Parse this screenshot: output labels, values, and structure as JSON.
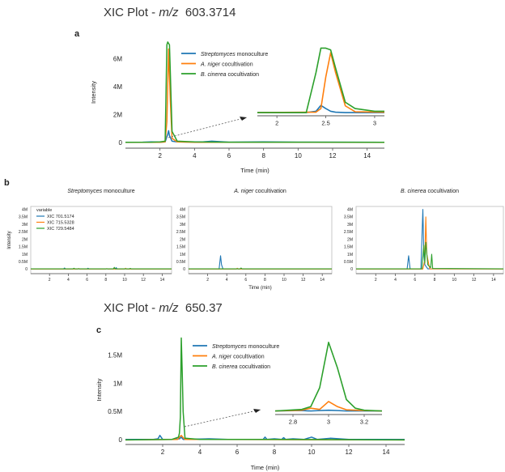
{
  "titles": {
    "top": {
      "prefix": "XIC Plot - ",
      "mz": "m/z",
      "value": "603.3714"
    },
    "bottom": {
      "prefix": "XIC Plot - ",
      "mz": "m/z",
      "value": "650.37"
    }
  },
  "panel_labels": {
    "a": "a",
    "b": "b",
    "c": "c"
  },
  "colors": {
    "streptomyces": "#1f77b4",
    "niger": "#ff7f0e",
    "cinerea": "#2ca02c"
  },
  "legend_main": [
    {
      "italic": "Streptomyces",
      "rest": " monoculture"
    },
    {
      "italic": "A. niger",
      "rest": " cocultivation"
    },
    {
      "italic": "B. cinerea",
      "rest": " cocultivation"
    }
  ],
  "legend_b": {
    "title": "variable",
    "items": [
      "XIC  701.5174",
      "XIC  715.5328",
      "XIC  729.5484"
    ]
  },
  "chart_data": [
    {
      "id": "a",
      "type": "line",
      "xlabel": "Time (min)",
      "ylabel": "Intensity",
      "xlim": [
        0,
        15
      ],
      "ylim": [
        -0.4,
        7.6
      ],
      "xticks": [
        2,
        4,
        6,
        8,
        10,
        12,
        14
      ],
      "yticks": [
        {
          "v": 0,
          "label": "0"
        },
        {
          "v": 2,
          "label": "2M"
        },
        {
          "v": 4,
          "label": "4M"
        },
        {
          "v": 6,
          "label": "6M"
        }
      ],
      "series": [
        {
          "key": "streptomyces",
          "x": [
            0,
            1.0,
            1.5,
            2.0,
            2.3,
            2.45,
            2.5,
            2.55,
            2.7,
            3.0,
            3.5,
            4.5,
            5.0,
            6.0,
            8.0,
            10.0,
            12.0,
            15.0
          ],
          "y": [
            0.02,
            0.03,
            0.05,
            0.03,
            0.05,
            0.6,
            0.85,
            0.5,
            0.1,
            0.05,
            0.04,
            0.05,
            0.1,
            0.03,
            0.05,
            0.03,
            0.03,
            0.02
          ]
        },
        {
          "key": "niger",
          "x": [
            0,
            2.0,
            2.3,
            2.4,
            2.5,
            2.6,
            2.7,
            3.0,
            4.0,
            6.0,
            10.0,
            15.0
          ],
          "y": [
            0.01,
            0.02,
            0.05,
            1.5,
            6.7,
            3.0,
            0.3,
            0.05,
            0.02,
            0.02,
            0.02,
            0.01
          ]
        },
        {
          "key": "cinerea",
          "x": [
            0,
            1.5,
            2.0,
            2.3,
            2.4,
            2.45,
            2.55,
            2.6,
            2.7,
            3.0,
            4.0,
            6.0,
            10.0,
            15.0
          ],
          "y": [
            0.02,
            0.03,
            0.05,
            0.1,
            7.0,
            7.2,
            7.0,
            5.0,
            0.8,
            0.1,
            0.05,
            0.03,
            0.03,
            0.02
          ]
        }
      ],
      "inset": {
        "xlim": [
          1.8,
          3.1
        ],
        "ylim": [
          -0.3,
          7.6
        ],
        "xticks": [
          {
            "v": 2,
            "label": "2"
          },
          {
            "v": 2.5,
            "label": "2.5"
          },
          {
            "v": 3,
            "label": "3"
          }
        ],
        "series": [
          {
            "key": "streptomyces",
            "x": [
              1.8,
              2.3,
              2.4,
              2.45,
              2.5,
              2.55,
              2.6,
              2.7,
              3.1
            ],
            "y": [
              0.05,
              0.05,
              0.2,
              0.85,
              0.5,
              0.2,
              0.1,
              0.05,
              0.05
            ]
          },
          {
            "key": "niger",
            "x": [
              1.8,
              2.4,
              2.45,
              2.5,
              2.55,
              2.6,
              2.7,
              2.8,
              3.1
            ],
            "y": [
              0.05,
              0.1,
              0.5,
              4.0,
              6.7,
              4.5,
              0.8,
              0.15,
              0.1
            ]
          },
          {
            "key": "cinerea",
            "x": [
              1.8,
              2.3,
              2.4,
              2.45,
              2.5,
              2.55,
              2.6,
              2.7,
              2.8,
              3.0,
              3.1
            ],
            "y": [
              0.05,
              0.05,
              4.5,
              7.2,
              7.2,
              7.0,
              5.0,
              1.2,
              0.5,
              0.2,
              0.2
            ]
          }
        ]
      }
    },
    {
      "id": "b1",
      "type": "line",
      "title": {
        "italic": "Streptomyces",
        "rest": " monoculture"
      },
      "ylabel": "Intensity",
      "xlim": [
        0,
        15
      ],
      "ylim": [
        -0.3,
        4.2
      ],
      "xticks": [
        2,
        4,
        6,
        8,
        10,
        12,
        14
      ],
      "yticks": [
        {
          "v": 0,
          "label": "0"
        },
        {
          "v": 0.5,
          "label": "0.5M"
        },
        {
          "v": 1,
          "label": "1M"
        },
        {
          "v": 1.5,
          "label": "1.5M"
        },
        {
          "v": 2,
          "label": "2M"
        },
        {
          "v": 2.5,
          "label": "2.5M"
        },
        {
          "v": 3,
          "label": "3M"
        },
        {
          "v": 3.5,
          "label": "3.5M"
        },
        {
          "v": 4,
          "label": "4M"
        }
      ],
      "series": [
        {
          "key": "streptomyces",
          "x": [
            0,
            3.5,
            3.6,
            3.7,
            6.0,
            6.1,
            6.2,
            9.0,
            9.1,
            9.2,
            15.0
          ],
          "y": [
            0.02,
            0.02,
            0.08,
            0.02,
            0.02,
            0.06,
            0.02,
            0.02,
            0.1,
            0.02,
            0.02
          ]
        },
        {
          "key": "niger",
          "x": [
            0,
            5.0,
            5.1,
            5.2,
            8.0,
            8.1,
            8.2,
            10.0,
            10.1,
            10.2,
            15.0
          ],
          "y": [
            0.01,
            0.01,
            0.05,
            0.01,
            0.01,
            0.04,
            0.01,
            0.01,
            0.06,
            0.01,
            0.01
          ]
        },
        {
          "key": "cinerea",
          "x": [
            0,
            4.5,
            4.6,
            4.7,
            8.8,
            8.9,
            9.0,
            10.5,
            10.6,
            10.7,
            15.0
          ],
          "y": [
            0.02,
            0.02,
            0.06,
            0.02,
            0.02,
            0.12,
            0.02,
            0.02,
            0.05,
            0.02,
            0.02
          ]
        }
      ]
    },
    {
      "id": "b2",
      "type": "line",
      "title": {
        "italic": "A. niger",
        "rest": " cocultivation"
      },
      "xlabel": "Time (min)",
      "xlim": [
        0,
        15
      ],
      "ylim": [
        -0.3,
        4.2
      ],
      "xticks": [
        2,
        4,
        6,
        8,
        10,
        12,
        14
      ],
      "yticks": [
        {
          "v": 0,
          "label": "0"
        },
        {
          "v": 0.5,
          "label": "0.5M"
        },
        {
          "v": 1,
          "label": "1M"
        },
        {
          "v": 1.5,
          "label": "1.5M"
        },
        {
          "v": 2,
          "label": "2M"
        },
        {
          "v": 2.5,
          "label": "2.5M"
        },
        {
          "v": 3,
          "label": "3M"
        },
        {
          "v": 3.5,
          "label": "3.5M"
        },
        {
          "v": 4,
          "label": "4M"
        }
      ],
      "series": [
        {
          "key": "streptomyces",
          "x": [
            0,
            3.2,
            3.35,
            3.45,
            3.6,
            15.0
          ],
          "y": [
            0.02,
            0.02,
            0.9,
            0.3,
            0.02,
            0.02
          ]
        },
        {
          "key": "niger",
          "x": [
            0,
            5.0,
            5.1,
            5.2,
            15.0
          ],
          "y": [
            0.01,
            0.01,
            0.06,
            0.01,
            0.01
          ]
        },
        {
          "key": "cinerea",
          "x": [
            0,
            5.4,
            5.5,
            5.6,
            15.0
          ],
          "y": [
            0.02,
            0.02,
            0.08,
            0.02,
            0.02
          ]
        }
      ]
    },
    {
      "id": "b3",
      "type": "line",
      "title": {
        "italic": "B. cinerea",
        "rest": " cocultivation"
      },
      "xlim": [
        0,
        15
      ],
      "ylim": [
        -0.3,
        4.2
      ],
      "xticks": [
        2,
        4,
        6,
        8,
        10,
        12,
        14
      ],
      "yticks": [
        {
          "v": 0,
          "label": "0"
        },
        {
          "v": 0.5,
          "label": "0.5M"
        },
        {
          "v": 1,
          "label": "1M"
        },
        {
          "v": 1.5,
          "label": "1.5M"
        },
        {
          "v": 2,
          "label": "2M"
        },
        {
          "v": 2.5,
          "label": "2.5M"
        },
        {
          "v": 3,
          "label": "3M"
        },
        {
          "v": 3.5,
          "label": "3.5M"
        },
        {
          "v": 4,
          "label": "4M"
        }
      ],
      "series": [
        {
          "key": "streptomyces",
          "x": [
            0,
            5.2,
            5.35,
            5.5,
            6.6,
            6.8,
            6.9,
            7.0,
            7.3,
            15.0
          ],
          "y": [
            0.02,
            0.02,
            0.9,
            0.02,
            0.02,
            4.0,
            1.0,
            0.3,
            0.02,
            0.02
          ]
        },
        {
          "key": "niger",
          "x": [
            0,
            6.8,
            7.0,
            7.1,
            7.2,
            7.5,
            15.0
          ],
          "y": [
            0.01,
            0.01,
            0.6,
            3.5,
            1.0,
            0.02,
            0.01
          ]
        },
        {
          "key": "cinerea",
          "x": [
            0,
            6.7,
            6.9,
            7.0,
            7.1,
            7.3,
            7.6,
            7.7,
            7.8,
            15.0
          ],
          "y": [
            0.02,
            0.02,
            1.6,
            0.4,
            1.8,
            0.3,
            0.1,
            1.0,
            0.05,
            0.02
          ]
        }
      ]
    },
    {
      "id": "c",
      "type": "line",
      "xlabel": "Time (min)",
      "ylabel": "Intensity",
      "xlim": [
        0,
        15
      ],
      "ylim": [
        -0.08,
        1.85
      ],
      "xticks": [
        2,
        4,
        6,
        8,
        10,
        12,
        14
      ],
      "yticks": [
        {
          "v": 0,
          "label": "0"
        },
        {
          "v": 0.5,
          "label": "0.5M"
        },
        {
          "v": 1,
          "label": "1M"
        },
        {
          "v": 1.5,
          "label": "1.5M"
        }
      ],
      "series": [
        {
          "key": "streptomyces",
          "x": [
            0,
            1.5,
            1.75,
            1.85,
            2.0,
            2.5,
            2.9,
            3.0,
            3.1,
            4.5,
            5.5,
            7.4,
            7.5,
            7.6,
            8.0,
            8.4,
            8.5,
            8.6,
            9.0,
            9.6,
            10.0,
            10.3,
            11.0,
            12.0,
            15.0
          ],
          "y": [
            0.01,
            0.01,
            0.02,
            0.08,
            0.01,
            0.01,
            0.02,
            0.05,
            0.01,
            0.02,
            0.01,
            0.01,
            0.05,
            0.01,
            0.02,
            0.01,
            0.04,
            0.01,
            0.02,
            0.01,
            0.05,
            0.01,
            0.03,
            0.01,
            0.01
          ]
        },
        {
          "key": "niger",
          "x": [
            0,
            2.8,
            2.9,
            3.0,
            3.1,
            3.2,
            15.0
          ],
          "y": [
            0.0,
            0.01,
            0.05,
            0.08,
            0.04,
            0.01,
            0.0
          ]
        },
        {
          "key": "cinerea",
          "x": [
            0,
            2.5,
            2.85,
            2.9,
            2.95,
            3.0,
            3.05,
            3.1,
            3.2,
            4.0,
            8.0,
            15.0
          ],
          "y": [
            0.0,
            0.01,
            0.05,
            0.12,
            0.4,
            1.8,
            1.2,
            0.5,
            0.03,
            0.01,
            0.01,
            0.0
          ]
        }
      ],
      "inset": {
        "xlim": [
          2.7,
          3.3
        ],
        "ylim": [
          -0.08,
          1.85
        ],
        "xticks": [
          {
            "v": 2.8,
            "label": "2.8"
          },
          {
            "v": 3,
            "label": "3"
          },
          {
            "v": 3.2,
            "label": "3.2"
          }
        ],
        "series": [
          {
            "key": "streptomyces",
            "x": [
              2.7,
              2.85,
              2.9,
              2.95,
              3.0,
              3.05,
              3.1,
              3.2,
              3.3
            ],
            "y": [
              0.01,
              0.02,
              0.01,
              0.02,
              0.03,
              0.02,
              0.01,
              0.01,
              0.01
            ]
          },
          {
            "key": "niger",
            "x": [
              2.7,
              2.85,
              2.9,
              2.95,
              3.0,
              3.05,
              3.1,
              3.2,
              3.3
            ],
            "y": [
              0.01,
              0.03,
              0.08,
              0.05,
              0.25,
              0.12,
              0.04,
              0.02,
              0.01
            ]
          },
          {
            "key": "cinerea",
            "x": [
              2.7,
              2.85,
              2.9,
              2.95,
              3.0,
              3.05,
              3.1,
              3.15,
              3.2,
              3.3
            ],
            "y": [
              0.01,
              0.05,
              0.12,
              0.6,
              1.75,
              1.1,
              0.3,
              0.08,
              0.03,
              0.01
            ]
          }
        ]
      }
    }
  ]
}
